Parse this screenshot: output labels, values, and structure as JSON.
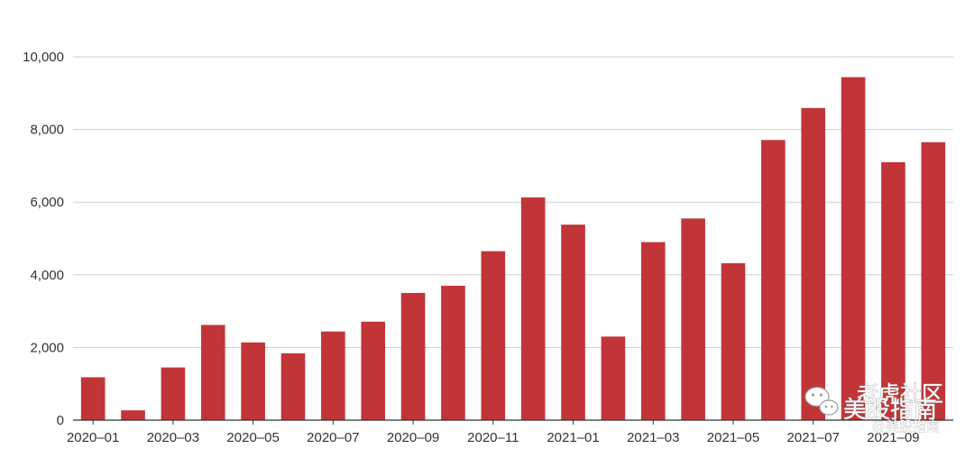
{
  "chart_data": {
    "type": "bar",
    "categories": [
      "2020-01",
      "2020-02",
      "2020-03",
      "2020-04",
      "2020-05",
      "2020-06",
      "2020-07",
      "2020-08",
      "2020-09",
      "2020-10",
      "2020-11",
      "2020-12",
      "2021-01",
      "2021-02",
      "2021-03",
      "2021-04",
      "2021-05",
      "2021-06",
      "2021-07",
      "2021-08",
      "2021-09",
      "2021-10"
    ],
    "x_tick_labels": [
      "2020–01",
      "2020–03",
      "2020–05",
      "2020–07",
      "2020–09",
      "2020–11",
      "2021–01",
      "2021–03",
      "2021–05",
      "2021–07",
      "2021–09"
    ],
    "x_tick_every": 2,
    "values": [
      1180,
      270,
      1450,
      2620,
      2140,
      1840,
      2440,
      2710,
      3500,
      3700,
      4650,
      6130,
      5380,
      2300,
      4900,
      5550,
      4320,
      7710,
      8590,
      9440,
      7100,
      7650
    ],
    "ylim": [
      0,
      10000
    ],
    "y_ticks": [
      0,
      2000,
      4000,
      6000,
      8000,
      10000
    ],
    "y_tick_labels": [
      "0",
      "2,000",
      "4,000",
      "6,000",
      "8,000",
      "10,000"
    ],
    "title": "",
    "xlabel": "",
    "ylabel": "",
    "grid": true,
    "bar_color": "#c13538"
  },
  "watermark": {
    "line1": "老虎社区",
    "line2": "美股指南",
    "handle": "@美股指南",
    "icon": "wechat-icon"
  }
}
